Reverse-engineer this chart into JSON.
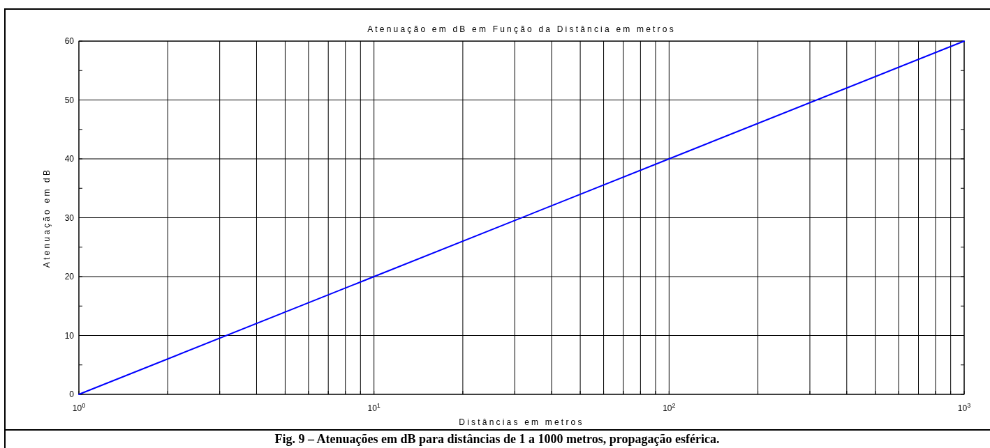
{
  "chart_data": {
    "type": "line",
    "title": "Atenuação em dB em Função da Distância em metros",
    "xlabel": "Distâncias em metros",
    "ylabel": "Atenuação em dB",
    "annotations": [
      "Fig. 9 – Atenuações em dB para distâncias de 1 a 1000 metros, propagação esférica."
    ],
    "log": "x",
    "grid": true,
    "line_style": "solid",
    "marker": "none",
    "xlim": [
      1,
      1000
    ],
    "ylim": [
      0,
      60
    ],
    "xticks": [
      {
        "value": 1,
        "label": "10$^{0}$"
      },
      {
        "value": 2,
        "label": null
      },
      {
        "value": 3,
        "label": null
      },
      {
        "value": 4,
        "label": null
      },
      {
        "value": 5,
        "label": null
      },
      {
        "value": 6,
        "label": null
      },
      {
        "value": 7,
        "label": null
      },
      {
        "value": 8,
        "label": null
      },
      {
        "value": 9,
        "label": null
      },
      {
        "value": 10,
        "label": "10$^{1}$"
      },
      {
        "value": 20,
        "label": null
      },
      {
        "value": 30,
        "label": null
      },
      {
        "value": 40,
        "label": null
      },
      {
        "value": 50,
        "label": null
      },
      {
        "value": 60,
        "label": null
      },
      {
        "value": 70,
        "label": null
      },
      {
        "value": 80,
        "label": null
      },
      {
        "value": 90,
        "label": null
      },
      {
        "value": 100,
        "label": "10$^{2}$"
      },
      {
        "value": 200,
        "label": null
      },
      {
        "value": 300,
        "label": null
      },
      {
        "value": 400,
        "label": null
      },
      {
        "value": 500,
        "label": null
      },
      {
        "value": 600,
        "label": null
      },
      {
        "value": 700,
        "label": null
      },
      {
        "value": 800,
        "label": null
      },
      {
        "value": 900,
        "label": null
      },
      {
        "value": 1000,
        "label": "10$^{3}$"
      }
    ],
    "yticks": [
      0,
      {
        "value": 5,
        "label": null
      },
      10,
      {
        "value": 15,
        "label": null
      },
      20,
      {
        "value": 25,
        "label": null
      },
      30,
      {
        "value": 35,
        "label": null
      },
      40,
      {
        "value": 45,
        "label": null
      },
      50,
      {
        "value": 55,
        "label": null
      },
      60
    ],
    "series": [
      {
        "color": "#0000ff",
        "x": [
          1,
          10,
          100,
          1000
        ],
        "values": [
          0,
          20,
          40,
          60
        ]
      }
    ]
  }
}
